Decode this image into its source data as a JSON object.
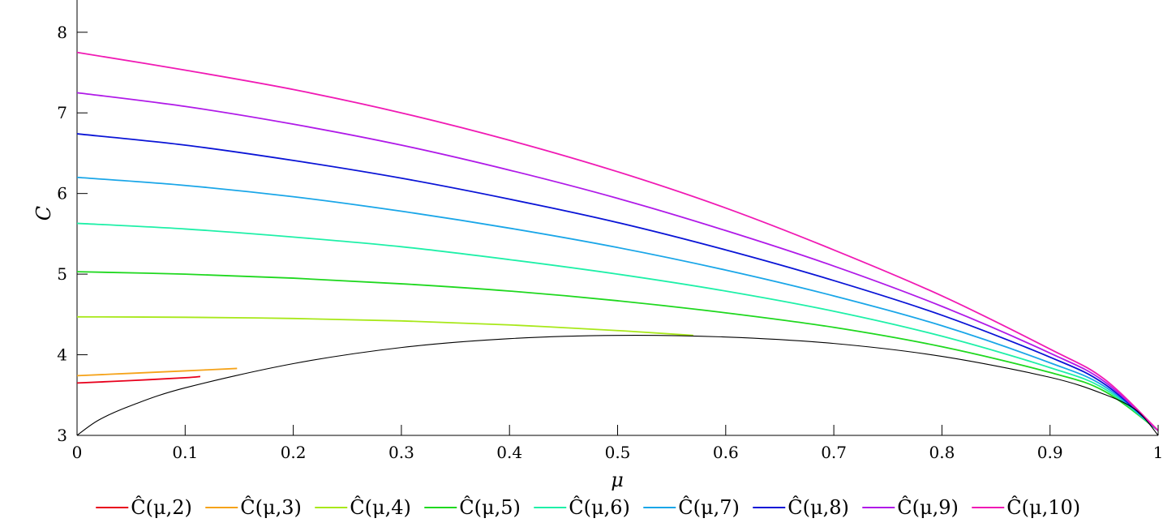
{
  "chart_data": {
    "type": "line",
    "title": "",
    "xlabel": "μ",
    "ylabel": "C",
    "xlim": [
      0,
      1
    ],
    "ylim": [
      3,
      8.4
    ],
    "xticks": [
      0,
      0.1,
      0.2,
      0.3,
      0.4,
      0.5,
      0.6,
      0.7,
      0.8,
      0.9,
      1
    ],
    "xtick_labels": [
      "0",
      "0.1",
      "0.2",
      "0.3",
      "0.4",
      "0.5",
      "0.6",
      "0.7",
      "0.8",
      "0.9",
      "1"
    ],
    "yticks": [
      3,
      4,
      5,
      6,
      7,
      8
    ],
    "ytick_labels": [
      "3",
      "4",
      "5",
      "6",
      "7",
      "8"
    ],
    "grid": false,
    "legend_position": "bottom",
    "series": [
      {
        "name": "Ĉ(μ,2)",
        "color": "#e8001c",
        "x": [
          0,
          0.05,
          0.1,
          0.114
        ],
        "y": [
          3.65,
          3.68,
          3.715,
          3.73
        ]
      },
      {
        "name": "Ĉ(μ,3)",
        "color": "#f5a31a",
        "x": [
          0,
          0.05,
          0.1,
          0.148
        ],
        "y": [
          3.74,
          3.77,
          3.8,
          3.83
        ]
      },
      {
        "name": "Ĉ(μ,4)",
        "color": "#a8e81a",
        "x": [
          0,
          0.1,
          0.2,
          0.3,
          0.4,
          0.5,
          0.57
        ],
        "y": [
          4.47,
          4.465,
          4.45,
          4.42,
          4.37,
          4.3,
          4.24
        ]
      },
      {
        "name": "Ĉ(μ,5)",
        "color": "#1fd81f",
        "x": [
          0,
          0.1,
          0.2,
          0.3,
          0.4,
          0.5,
          0.6,
          0.7,
          0.8,
          0.9,
          0.95,
          1
        ],
        "y": [
          5.03,
          5.0,
          4.95,
          4.88,
          4.79,
          4.67,
          4.52,
          4.34,
          4.1,
          3.78,
          3.55,
          3.06
        ]
      },
      {
        "name": "Ĉ(μ,6)",
        "color": "#1ff0a8",
        "x": [
          0,
          0.1,
          0.2,
          0.3,
          0.4,
          0.5,
          0.6,
          0.7,
          0.8,
          0.9,
          0.95,
          1
        ],
        "y": [
          5.63,
          5.56,
          5.46,
          5.34,
          5.18,
          5.0,
          4.79,
          4.54,
          4.23,
          3.84,
          3.58,
          3.06
        ]
      },
      {
        "name": "Ĉ(μ,7)",
        "color": "#1aa6e8",
        "x": [
          0,
          0.1,
          0.2,
          0.3,
          0.4,
          0.5,
          0.6,
          0.7,
          0.8,
          0.9,
          0.95,
          1
        ],
        "y": [
          6.2,
          6.1,
          5.96,
          5.78,
          5.57,
          5.33,
          5.05,
          4.73,
          4.36,
          3.9,
          3.61,
          3.06
        ]
      },
      {
        "name": "Ĉ(μ,8)",
        "color": "#0a14d6",
        "x": [
          0,
          0.1,
          0.2,
          0.3,
          0.4,
          0.5,
          0.6,
          0.7,
          0.8,
          0.9,
          0.95,
          1
        ],
        "y": [
          6.74,
          6.6,
          6.41,
          6.19,
          5.93,
          5.64,
          5.3,
          4.92,
          4.49,
          3.97,
          3.64,
          3.06
        ]
      },
      {
        "name": "Ĉ(μ,9)",
        "color": "#b01ae8",
        "x": [
          0,
          0.1,
          0.2,
          0.3,
          0.4,
          0.5,
          0.6,
          0.7,
          0.8,
          0.9,
          0.95,
          1
        ],
        "y": [
          7.25,
          7.08,
          6.86,
          6.6,
          6.29,
          5.94,
          5.54,
          5.1,
          4.6,
          4.02,
          3.67,
          3.06
        ]
      },
      {
        "name": "Ĉ(μ,10)",
        "color": "#f01ab4",
        "x": [
          0,
          0.1,
          0.2,
          0.3,
          0.4,
          0.5,
          0.6,
          0.7,
          0.8,
          0.9,
          0.95,
          1
        ],
        "y": [
          7.75,
          7.53,
          7.29,
          7.0,
          6.66,
          6.27,
          5.82,
          5.3,
          4.73,
          4.07,
          3.7,
          3.06
        ]
      },
      {
        "name": "",
        "color": "#000000",
        "x": [
          0,
          0.02,
          0.05,
          0.1,
          0.2,
          0.3,
          0.4,
          0.5,
          0.6,
          0.7,
          0.8,
          0.9,
          0.95,
          0.98,
          1
        ],
        "y": [
          3.0,
          3.19,
          3.37,
          3.59,
          3.89,
          4.09,
          4.2,
          4.24,
          4.22,
          4.14,
          3.98,
          3.72,
          3.51,
          3.31,
          3.0
        ]
      }
    ]
  }
}
